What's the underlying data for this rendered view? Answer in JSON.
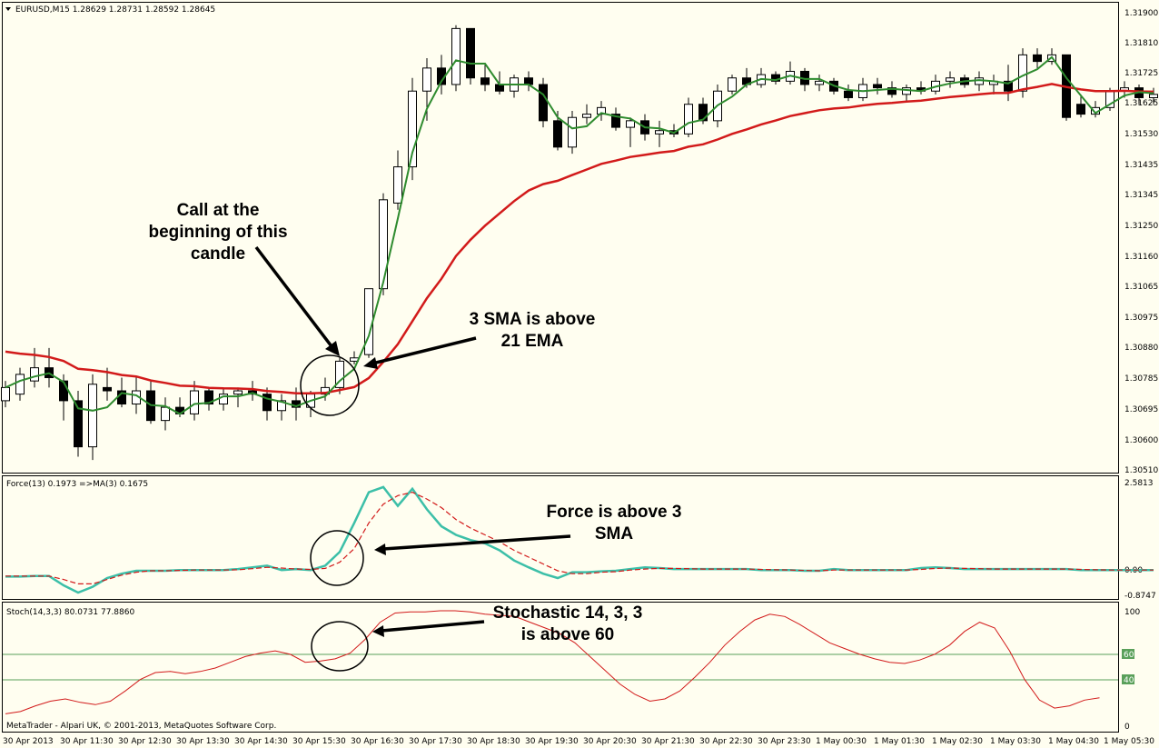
{
  "chart_data": [
    {
      "type": "candlestick",
      "title": "EURUSD,M15 1.28629 1.28731 1.28592 1.28645",
      "ylim": [
        1.3051,
        1.3192
      ],
      "yticks": [
        "1.31900",
        "1.31810",
        "1.31725",
        "1.31625",
        "1.31530",
        "1.31435",
        "1.31345",
        "1.31250",
        "1.31160",
        "1.31065",
        "1.30975",
        "1.30880",
        "1.30785",
        "1.30695",
        "1.30600",
        "1.30510"
      ],
      "candles": [
        [
          1.3072,
          1.3078,
          1.307,
          1.3076
        ],
        [
          1.3074,
          1.3082,
          1.3072,
          1.308
        ],
        [
          1.3078,
          1.3088,
          1.3076,
          1.3082
        ],
        [
          1.3082,
          1.3088,
          1.3076,
          1.3079
        ],
        [
          1.3078,
          1.308,
          1.3066,
          1.3072
        ],
        [
          1.3072,
          1.3075,
          1.3055,
          1.3058
        ],
        [
          1.3058,
          1.308,
          1.3054,
          1.3077
        ],
        [
          1.3076,
          1.3082,
          1.3072,
          1.3075
        ],
        [
          1.3075,
          1.3079,
          1.307,
          1.3071
        ],
        [
          1.3071,
          1.3079,
          1.3068,
          1.3075
        ],
        [
          1.3075,
          1.3078,
          1.3065,
          1.3066
        ],
        [
          1.3066,
          1.3073,
          1.3063,
          1.307
        ],
        [
          1.307,
          1.3073,
          1.3067,
          1.3068
        ],
        [
          1.3068,
          1.3078,
          1.3066,
          1.3075
        ],
        [
          1.3075,
          1.3076,
          1.3069,
          1.3071
        ],
        [
          1.3071,
          1.3076,
          1.3069,
          1.3074
        ],
        [
          1.3074,
          1.3076,
          1.307,
          1.3075
        ],
        [
          1.3075,
          1.3078,
          1.3072,
          1.3074
        ],
        [
          1.3074,
          1.3076,
          1.3066,
          1.3069
        ],
        [
          1.3069,
          1.3074,
          1.3066,
          1.3072
        ],
        [
          1.3072,
          1.3076,
          1.3066,
          1.307
        ],
        [
          1.307,
          1.3075,
          1.3067,
          1.3074
        ],
        [
          1.3074,
          1.3079,
          1.3072,
          1.3076
        ],
        [
          1.3076,
          1.3085,
          1.3074,
          1.3084
        ],
        [
          1.3084,
          1.3087,
          1.3083,
          1.3085
        ],
        [
          1.3086,
          1.3106,
          1.3085,
          1.3106
        ],
        [
          1.3106,
          1.3135,
          1.3104,
          1.3133
        ],
        [
          1.3132,
          1.3148,
          1.313,
          1.3143
        ],
        [
          1.3143,
          1.317,
          1.3139,
          1.3166
        ],
        [
          1.3166,
          1.3176,
          1.3157,
          1.3173
        ],
        [
          1.3173,
          1.3177,
          1.3165,
          1.3168
        ],
        [
          1.3168,
          1.3186,
          1.3166,
          1.3185
        ],
        [
          1.3185,
          1.3185,
          1.3168,
          1.317
        ],
        [
          1.317,
          1.3174,
          1.3166,
          1.3168
        ],
        [
          1.3168,
          1.3172,
          1.3165,
          1.3166
        ],
        [
          1.3166,
          1.3171,
          1.3164,
          1.317
        ],
        [
          1.317,
          1.3172,
          1.3166,
          1.3168
        ],
        [
          1.3168,
          1.317,
          1.3155,
          1.3157
        ],
        [
          1.3157,
          1.316,
          1.3148,
          1.3149
        ],
        [
          1.3149,
          1.316,
          1.3147,
          1.3158
        ],
        [
          1.3158,
          1.3162,
          1.3156,
          1.3159
        ],
        [
          1.3159,
          1.3163,
          1.3157,
          1.3161
        ],
        [
          1.3159,
          1.3161,
          1.3154,
          1.3155
        ],
        [
          1.3155,
          1.3158,
          1.3149,
          1.3157
        ],
        [
          1.3157,
          1.3159,
          1.3151,
          1.3153
        ],
        [
          1.3153,
          1.3157,
          1.3149,
          1.3154
        ],
        [
          1.3154,
          1.3156,
          1.3152,
          1.3153
        ],
        [
          1.3153,
          1.3164,
          1.3152,
          1.3162
        ],
        [
          1.3162,
          1.3164,
          1.3156,
          1.3157
        ],
        [
          1.3157,
          1.3168,
          1.3155,
          1.3166
        ],
        [
          1.3166,
          1.3171,
          1.3165,
          1.317
        ],
        [
          1.317,
          1.3173,
          1.3167,
          1.3168
        ],
        [
          1.3168,
          1.3173,
          1.3167,
          1.3171
        ],
        [
          1.3171,
          1.3172,
          1.3168,
          1.3169
        ],
        [
          1.3169,
          1.3175,
          1.3168,
          1.3172
        ],
        [
          1.3172,
          1.3173,
          1.3166,
          1.3168
        ],
        [
          1.3168,
          1.3171,
          1.3166,
          1.3169
        ],
        [
          1.3169,
          1.317,
          1.3165,
          1.3166
        ],
        [
          1.3166,
          1.3168,
          1.3163,
          1.3164
        ],
        [
          1.3164,
          1.317,
          1.3163,
          1.3168
        ],
        [
          1.3168,
          1.317,
          1.3165,
          1.3167
        ],
        [
          1.3167,
          1.3169,
          1.3164,
          1.3165
        ],
        [
          1.3165,
          1.3168,
          1.3163,
          1.3167
        ],
        [
          1.3167,
          1.3169,
          1.3165,
          1.3166
        ],
        [
          1.3166,
          1.3171,
          1.3165,
          1.3169
        ],
        [
          1.3169,
          1.3172,
          1.3167,
          1.317
        ],
        [
          1.317,
          1.3171,
          1.3167,
          1.3168
        ],
        [
          1.3168,
          1.3172,
          1.3166,
          1.317
        ],
        [
          1.3168,
          1.3171,
          1.3165,
          1.3169
        ],
        [
          1.3169,
          1.3174,
          1.3163,
          1.3166
        ],
        [
          1.3166,
          1.3179,
          1.3164,
          1.3177
        ],
        [
          1.3177,
          1.3179,
          1.3173,
          1.3175
        ],
        [
          1.3175,
          1.3179,
          1.3174,
          1.3177
        ],
        [
          1.3177,
          1.3177,
          1.3157,
          1.3158
        ],
        [
          1.3162,
          1.3165,
          1.3158,
          1.3159
        ],
        [
          1.3159,
          1.3163,
          1.3158,
          1.3161
        ],
        [
          1.3161,
          1.3167,
          1.316,
          1.3166
        ],
        [
          1.3166,
          1.3169,
          1.3164,
          1.3167
        ],
        [
          1.3167,
          1.3168,
          1.3162,
          1.3164
        ],
        [
          1.3164,
          1.3167,
          1.3162,
          1.3165
        ]
      ],
      "series": [
        {
          "name": "3 SMA",
          "color": "#2e8b2e"
        },
        {
          "name": "21 EMA",
          "color": "#d21a1a"
        }
      ],
      "xticks": [
        "30 Apr 2013",
        "30 Apr 11:30",
        "30 Apr 12:30",
        "30 Apr 13:30",
        "30 Apr 14:30",
        "30 Apr 15:30",
        "30 Apr 16:30",
        "30 Apr 17:30",
        "30 Apr 18:30",
        "30 Apr 19:30",
        "30 Apr 20:30",
        "30 Apr 21:30",
        "30 Apr 22:30",
        "30 Apr 23:30",
        "1 May 00:30",
        "1 May 01:30",
        "1 May 02:30",
        "1 May 03:30",
        "1 May 04:30",
        "1 May 05:30"
      ],
      "annotations": [
        {
          "lines": [
            "Call at the",
            "beginning of this",
            "candle"
          ]
        },
        {
          "lines": [
            "3 SMA is above",
            "21 EMA"
          ]
        }
      ]
    },
    {
      "type": "line",
      "title": "Force(13) 0.1973 =>MA(3) 0.1675",
      "ylim": [
        -0.8747,
        2.5813
      ],
      "yticks": [
        "2.5813",
        "0.00",
        "-0.8747"
      ],
      "series": [
        {
          "name": "Force(13)",
          "color": "#3cbfa8",
          "values": [
            -0.2,
            -0.2,
            -0.18,
            -0.18,
            -0.5,
            -0.75,
            -0.55,
            -0.25,
            -0.1,
            0.0,
            0.0,
            0.0,
            0.02,
            0.02,
            0.02,
            0.02,
            0.05,
            0.1,
            0.15,
            0.02,
            0.05,
            0.02,
            0.15,
            0.55,
            1.4,
            2.3,
            2.45,
            1.9,
            2.4,
            1.8,
            1.3,
            1.05,
            0.9,
            0.8,
            0.6,
            0.3,
            0.1,
            -0.1,
            -0.25,
            -0.05,
            -0.05,
            -0.02,
            0.0,
            0.05,
            0.1,
            0.08,
            0.05,
            0.05,
            0.05,
            0.05,
            0.05,
            0.05,
            0.02,
            0.02,
            0.02,
            0.0,
            0.0,
            0.05,
            0.02,
            0.02,
            0.02,
            0.02,
            0.02,
            0.08,
            0.1,
            0.08,
            0.05,
            0.05,
            0.05,
            0.05,
            0.05,
            0.05,
            0.05,
            0.05,
            0.02,
            0.02,
            0.02,
            0.02,
            0.02,
            0.02
          ]
        },
        {
          "name": "MA(3)",
          "color": "#d21a1a",
          "values": [
            -0.18,
            -0.18,
            -0.18,
            -0.18,
            -0.3,
            -0.45,
            -0.45,
            -0.3,
            -0.15,
            -0.05,
            0.0,
            0.0,
            0.01,
            0.02,
            0.02,
            0.02,
            0.03,
            0.06,
            0.1,
            0.08,
            0.05,
            0.04,
            0.07,
            0.25,
            0.65,
            1.4,
            1.95,
            2.2,
            2.3,
            2.1,
            1.85,
            1.5,
            1.25,
            1.05,
            0.85,
            0.6,
            0.4,
            0.2,
            0.0,
            -0.1,
            -0.1,
            -0.05,
            -0.03,
            0.02,
            0.05,
            0.07,
            0.07,
            0.06,
            0.05,
            0.05,
            0.05,
            0.05,
            0.04,
            0.03,
            0.02,
            0.01,
            0.0,
            0.02,
            0.02,
            0.02,
            0.02,
            0.02,
            0.02,
            0.04,
            0.07,
            0.08,
            0.07,
            0.06,
            0.05,
            0.05,
            0.05,
            0.05,
            0.05,
            0.05,
            0.04,
            0.03,
            0.02,
            0.02,
            0.02,
            0.02
          ]
        }
      ],
      "annotations": [
        {
          "lines": [
            "Force is above 3",
            "SMA"
          ]
        }
      ]
    },
    {
      "type": "line",
      "title": "Stoch(14,3,3) 80.0731 77.8860",
      "ylim": [
        0,
        100
      ],
      "yticks": [
        "100",
        "60",
        "40",
        "0"
      ],
      "levels": [
        60,
        40
      ],
      "series": [
        {
          "name": "Stoch(14,3,3)",
          "color": "#d21a1a",
          "values": [
            10,
            12,
            17,
            21,
            23,
            20,
            18,
            21,
            30,
            40,
            46,
            47,
            45,
            47,
            50,
            55,
            60,
            63,
            65,
            62,
            55,
            56,
            58,
            63,
            75,
            90,
            98,
            99,
            99,
            100,
            100,
            99,
            97,
            96,
            95,
            90,
            85,
            80,
            72,
            60,
            48,
            36,
            27,
            21,
            23,
            30,
            42,
            55,
            70,
            82,
            92,
            97,
            95,
            88,
            80,
            72,
            67,
            62,
            58,
            55,
            54,
            57,
            62,
            70,
            82,
            90,
            85,
            65,
            40,
            22,
            15,
            17,
            22,
            24
          ]
        }
      ],
      "annotations": [
        {
          "lines": [
            "Stochastic 14, 3, 3",
            "is above 60"
          ]
        }
      ]
    }
  ],
  "footer": {
    "copyright": "MetaTrader - Alpari UK, © 2001-2013, MetaQuotes Software Corp."
  }
}
